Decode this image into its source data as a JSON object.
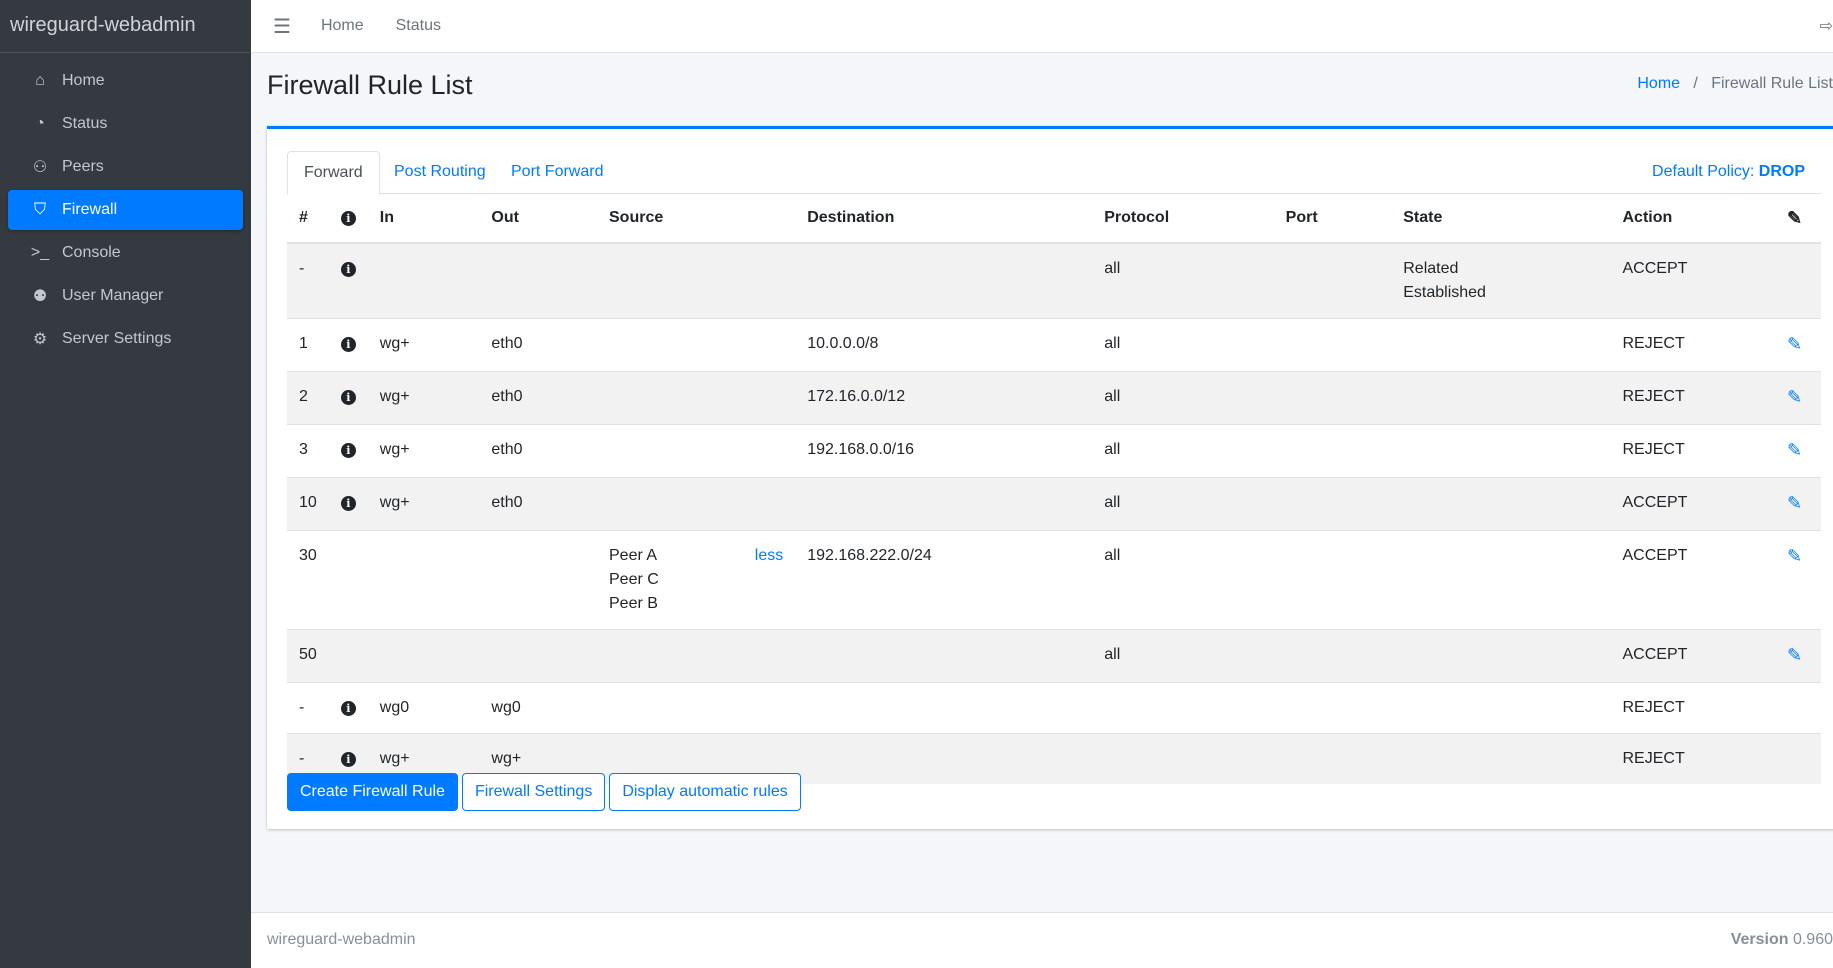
{
  "app": {
    "brand": "wireguard-webadmin"
  },
  "sidebar": {
    "items": [
      {
        "label": "Home",
        "icon": "home-icon",
        "glyph": "⌂"
      },
      {
        "label": "Status",
        "icon": "tachometer-icon",
        "glyph": "◔"
      },
      {
        "label": "Peers",
        "icon": "users-cog-icon",
        "glyph": "⚇"
      },
      {
        "label": "Firewall",
        "icon": "shield-icon",
        "glyph": "⛉",
        "active": true
      },
      {
        "label": "Console",
        "icon": "terminal-icon",
        "glyph": ">_"
      },
      {
        "label": "User Manager",
        "icon": "users-icon",
        "glyph": "⚉"
      },
      {
        "label": "Server Settings",
        "icon": "cogs-icon",
        "glyph": "⚙"
      }
    ]
  },
  "topbar": {
    "links": [
      "Home",
      "Status"
    ]
  },
  "page": {
    "title": "Firewall Rule List",
    "breadcrumb": {
      "home": "Home",
      "current": "Firewall Rule List"
    }
  },
  "tabs": [
    "Forward",
    "Post Routing",
    "Port Forward"
  ],
  "policy": {
    "label": "Default Policy:",
    "value": "DROP"
  },
  "table": {
    "headers": [
      "#",
      "",
      "In",
      "Out",
      "Source",
      "Destination",
      "Protocol",
      "Port",
      "State",
      "Action"
    ],
    "rows": [
      {
        "num": "-",
        "info": true,
        "in": "",
        "out": "",
        "source": [],
        "less": "",
        "dest": "",
        "proto": "all",
        "port": "",
        "state": [
          "Related",
          "Established"
        ],
        "action": "ACCEPT",
        "edit": false
      },
      {
        "num": "1",
        "info": true,
        "in": "wg+",
        "out": "eth0",
        "source": [],
        "less": "",
        "dest": "10.0.0.0/8",
        "proto": "all",
        "port": "",
        "state": [],
        "action": "REJECT",
        "edit": true
      },
      {
        "num": "2",
        "info": true,
        "in": "wg+",
        "out": "eth0",
        "source": [],
        "less": "",
        "dest": "172.16.0.0/12",
        "proto": "all",
        "port": "",
        "state": [],
        "action": "REJECT",
        "edit": true
      },
      {
        "num": "3",
        "info": true,
        "in": "wg+",
        "out": "eth0",
        "source": [],
        "less": "",
        "dest": "192.168.0.0/16",
        "proto": "all",
        "port": "",
        "state": [],
        "action": "REJECT",
        "edit": true
      },
      {
        "num": "10",
        "info": true,
        "in": "wg+",
        "out": "eth0",
        "source": [],
        "less": "",
        "dest": "",
        "proto": "all",
        "port": "",
        "state": [],
        "action": "ACCEPT",
        "edit": true
      },
      {
        "num": "30",
        "info": false,
        "in": "",
        "out": "",
        "source": [
          "Peer A",
          "Peer C",
          "Peer B"
        ],
        "less": "less",
        "dest": "192.168.222.0/24",
        "proto": "all",
        "port": "",
        "state": [],
        "action": "ACCEPT",
        "edit": true
      },
      {
        "num": "50",
        "info": false,
        "in": "",
        "out": "",
        "source": [],
        "less": "",
        "dest": "",
        "proto": "all",
        "port": "",
        "state": [],
        "action": "ACCEPT",
        "edit": true
      },
      {
        "num": "-",
        "info": true,
        "in": "wg0",
        "out": "wg0",
        "source": [],
        "less": "",
        "dest": "",
        "proto": "",
        "port": "",
        "state": [],
        "action": "REJECT",
        "edit": false
      },
      {
        "num": "-",
        "info": true,
        "in": "wg+",
        "out": "wg+",
        "source": [],
        "less": "",
        "dest": "",
        "proto": "",
        "port": "",
        "state": [],
        "action": "REJECT",
        "edit": false
      }
    ]
  },
  "buttons": {
    "create": "Create Firewall Rule",
    "settings": "Firewall Settings",
    "auto": "Display automatic rules"
  },
  "footer": {
    "left": "wireguard-webadmin",
    "version_label": "Version",
    "version": "0.960"
  },
  "colors": {
    "accent": "#007bff",
    "sidebar": "#343a40"
  }
}
